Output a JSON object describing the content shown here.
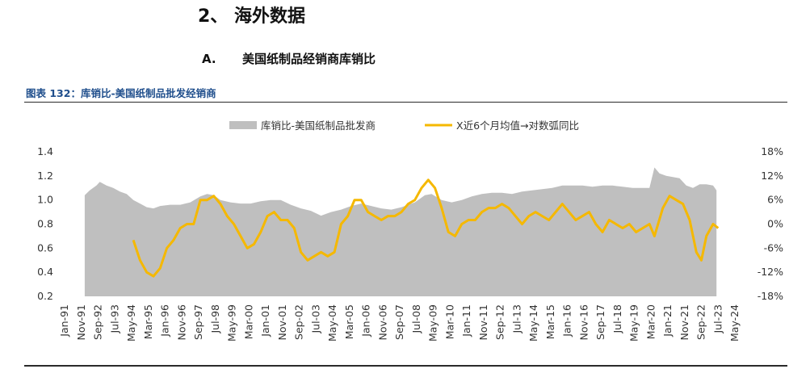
{
  "header": {
    "section_title": "2、 海外数据",
    "subsection_marker": "A.",
    "subsection_title": "美国纸制品经销商库销比"
  },
  "figure": {
    "title": "图表 132：库销比-美国纸制品批发经销商"
  },
  "chart_data": {
    "type": "area+line",
    "title": "",
    "legend_position": "top",
    "series": [
      {
        "name": "库销比-美国纸制品批发商",
        "type": "area",
        "axis": "left",
        "color": "#bfbfbf",
        "points": [
          [
            "1992-01",
            1.04
          ],
          [
            "1992-04",
            1.08
          ],
          [
            "1992-08",
            1.12
          ],
          [
            "1992-10",
            1.15
          ],
          [
            "1993-02",
            1.12
          ],
          [
            "1993-06",
            1.1
          ],
          [
            "1993-10",
            1.07
          ],
          [
            "1994-02",
            1.05
          ],
          [
            "1994-06",
            1.0
          ],
          [
            "1994-10",
            0.97
          ],
          [
            "1995-02",
            0.94
          ],
          [
            "1995-06",
            0.93
          ],
          [
            "1995-10",
            0.95
          ],
          [
            "1996-04",
            0.96
          ],
          [
            "1996-10",
            0.96
          ],
          [
            "1997-04",
            0.98
          ],
          [
            "1997-10",
            1.03
          ],
          [
            "1998-02",
            1.05
          ],
          [
            "1998-06",
            1.04
          ],
          [
            "1998-10",
            1.0
          ],
          [
            "1999-04",
            0.98
          ],
          [
            "1999-10",
            0.97
          ],
          [
            "2000-04",
            0.97
          ],
          [
            "2000-10",
            0.99
          ],
          [
            "2001-04",
            1.0
          ],
          [
            "2001-10",
            1.0
          ],
          [
            "2002-04",
            0.96
          ],
          [
            "2002-10",
            0.93
          ],
          [
            "2003-04",
            0.91
          ],
          [
            "2003-10",
            0.87
          ],
          [
            "2004-04",
            0.9
          ],
          [
            "2004-10",
            0.92
          ],
          [
            "2005-04",
            0.95
          ],
          [
            "2005-10",
            0.97
          ],
          [
            "2006-04",
            0.95
          ],
          [
            "2006-10",
            0.93
          ],
          [
            "2007-04",
            0.92
          ],
          [
            "2007-10",
            0.94
          ],
          [
            "2008-06",
            0.98
          ],
          [
            "2008-12",
            1.04
          ],
          [
            "2009-04",
            1.05
          ],
          [
            "2009-10",
            1.0
          ],
          [
            "2010-04",
            0.98
          ],
          [
            "2010-10",
            1.0
          ],
          [
            "2011-04",
            1.03
          ],
          [
            "2011-10",
            1.05
          ],
          [
            "2012-04",
            1.06
          ],
          [
            "2012-10",
            1.06
          ],
          [
            "2013-04",
            1.05
          ],
          [
            "2013-10",
            1.07
          ],
          [
            "2014-04",
            1.08
          ],
          [
            "2014-10",
            1.09
          ],
          [
            "2015-04",
            1.1
          ],
          [
            "2015-10",
            1.12
          ],
          [
            "2016-04",
            1.12
          ],
          [
            "2016-10",
            1.12
          ],
          [
            "2017-04",
            1.11
          ],
          [
            "2017-10",
            1.12
          ],
          [
            "2018-04",
            1.12
          ],
          [
            "2018-10",
            1.11
          ],
          [
            "2019-04",
            1.1
          ],
          [
            "2019-10",
            1.1
          ],
          [
            "2020-02",
            1.1
          ],
          [
            "2020-05",
            1.27
          ],
          [
            "2020-08",
            1.22
          ],
          [
            "2020-12",
            1.2
          ],
          [
            "2021-04",
            1.19
          ],
          [
            "2021-08",
            1.18
          ],
          [
            "2021-12",
            1.12
          ],
          [
            "2022-04",
            1.1
          ],
          [
            "2022-08",
            1.13
          ],
          [
            "2022-12",
            1.13
          ],
          [
            "2023-04",
            1.12
          ],
          [
            "2023-06",
            1.08
          ]
        ]
      },
      {
        "name": "X近6个月均值→对数弧同比",
        "type": "line",
        "axis": "right",
        "color": "#f5b800",
        "points": [
          [
            "1994-06",
            -4
          ],
          [
            "1994-10",
            -9
          ],
          [
            "1995-02",
            -12
          ],
          [
            "1995-06",
            -13
          ],
          [
            "1995-10",
            -11
          ],
          [
            "1996-02",
            -6
          ],
          [
            "1996-06",
            -4
          ],
          [
            "1996-10",
            -1
          ],
          [
            "1997-02",
            0
          ],
          [
            "1997-06",
            0
          ],
          [
            "1997-10",
            6
          ],
          [
            "1998-02",
            6
          ],
          [
            "1998-06",
            7
          ],
          [
            "1998-10",
            5
          ],
          [
            "1999-02",
            2
          ],
          [
            "1999-06",
            0
          ],
          [
            "1999-10",
            -3
          ],
          [
            "2000-02",
            -6
          ],
          [
            "2000-06",
            -5
          ],
          [
            "2000-10",
            -2
          ],
          [
            "2001-02",
            2
          ],
          [
            "2001-06",
            3
          ],
          [
            "2001-10",
            1
          ],
          [
            "2002-02",
            1
          ],
          [
            "2002-06",
            -1
          ],
          [
            "2002-10",
            -7
          ],
          [
            "2003-02",
            -9
          ],
          [
            "2003-06",
            -8
          ],
          [
            "2003-10",
            -7
          ],
          [
            "2004-02",
            -8
          ],
          [
            "2004-06",
            -7
          ],
          [
            "2004-10",
            0
          ],
          [
            "2005-02",
            2
          ],
          [
            "2005-06",
            6
          ],
          [
            "2005-10",
            6
          ],
          [
            "2006-02",
            3
          ],
          [
            "2006-06",
            2
          ],
          [
            "2006-10",
            1
          ],
          [
            "2007-02",
            2
          ],
          [
            "2007-06",
            2
          ],
          [
            "2007-10",
            3
          ],
          [
            "2008-02",
            5
          ],
          [
            "2008-06",
            6
          ],
          [
            "2008-10",
            9
          ],
          [
            "2009-02",
            11
          ],
          [
            "2009-06",
            9
          ],
          [
            "2009-10",
            4
          ],
          [
            "2010-02",
            -2
          ],
          [
            "2010-06",
            -3
          ],
          [
            "2010-10",
            0
          ],
          [
            "2011-02",
            1
          ],
          [
            "2011-06",
            1
          ],
          [
            "2011-10",
            3
          ],
          [
            "2012-02",
            4
          ],
          [
            "2012-06",
            4
          ],
          [
            "2012-10",
            5
          ],
          [
            "2013-02",
            4
          ],
          [
            "2013-06",
            2
          ],
          [
            "2013-10",
            0
          ],
          [
            "2014-02",
            2
          ],
          [
            "2014-06",
            3
          ],
          [
            "2014-10",
            2
          ],
          [
            "2015-02",
            1
          ],
          [
            "2015-06",
            3
          ],
          [
            "2015-10",
            5
          ],
          [
            "2016-02",
            3
          ],
          [
            "2016-06",
            1
          ],
          [
            "2016-10",
            2
          ],
          [
            "2017-02",
            3
          ],
          [
            "2017-06",
            0
          ],
          [
            "2017-10",
            -2
          ],
          [
            "2018-02",
            1
          ],
          [
            "2018-06",
            0
          ],
          [
            "2018-10",
            -1
          ],
          [
            "2019-02",
            0
          ],
          [
            "2019-06",
            -2
          ],
          [
            "2019-10",
            -1
          ],
          [
            "2020-02",
            0
          ],
          [
            "2020-05",
            -3
          ],
          [
            "2020-10",
            4
          ],
          [
            "2021-02",
            7
          ],
          [
            "2021-06",
            6
          ],
          [
            "2021-10",
            5
          ],
          [
            "2022-02",
            1
          ],
          [
            "2022-06",
            -7
          ],
          [
            "2022-09",
            -9
          ],
          [
            "2022-12",
            -3
          ],
          [
            "2023-04",
            0
          ],
          [
            "2023-07",
            -1
          ]
        ]
      }
    ],
    "x_tick_labels": [
      "Jan-91",
      "Nov-91",
      "Sep-92",
      "Jul-93",
      "May-94",
      "Mar-95",
      "Jan-96",
      "Nov-96",
      "Sep-97",
      "Jul-98",
      "May-99",
      "Mar-00",
      "Jan-01",
      "Nov-01",
      "Sep-02",
      "Jul-03",
      "May-04",
      "Mar-05",
      "Jan-06",
      "Nov-06",
      "Sep-07",
      "Jul-08",
      "May-09",
      "Mar-10",
      "Jan-11",
      "Nov-11",
      "Sep-12",
      "Jul-13",
      "May-14",
      "Mar-15",
      "Jan-16",
      "Nov-16",
      "Sep-17",
      "Jul-18",
      "May-19",
      "Mar-20",
      "Jan-21",
      "Nov-21",
      "Sep-22",
      "Jul-23",
      "May-24"
    ],
    "x_range": [
      "1991-01",
      "2024-05"
    ],
    "left_axis": {
      "min": 0.2,
      "max": 1.4,
      "ticks": [
        "0.2",
        "0.4",
        "0.6",
        "0.8",
        "1.0",
        "1.2",
        "1.4"
      ]
    },
    "right_axis": {
      "min": -18,
      "max": 18,
      "ticks": [
        "-18%",
        "-12%",
        "-6%",
        "0%",
        "6%",
        "12%",
        "18%"
      ]
    },
    "grid": false
  }
}
